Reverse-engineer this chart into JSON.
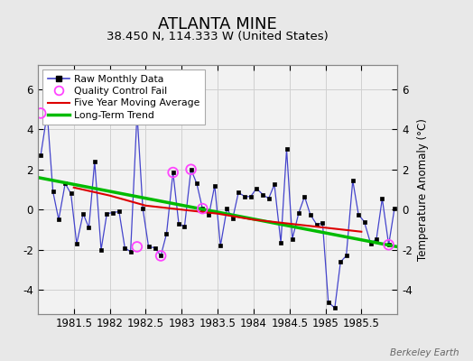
{
  "title": "ATLANTA MINE",
  "subtitle": "38.450 N, 114.333 W (United States)",
  "watermark": "Berkeley Earth",
  "ylabel": "Temperature Anomaly (°C)",
  "ylim": [
    -5.2,
    7.2
  ],
  "xlim": [
    1981.0,
    1986.0
  ],
  "xticks": [
    1981.5,
    1982.0,
    1982.5,
    1983.0,
    1983.5,
    1984.0,
    1984.5,
    1985.0,
    1985.5
  ],
  "xtick_labels": [
    "1981.5",
    "1982",
    "1982.5",
    "1983",
    "1983.5",
    "1984",
    "1984.5",
    "1985",
    "1985.5"
  ],
  "yticks": [
    -4,
    -2,
    0,
    2,
    4,
    6
  ],
  "ytick_labels": [
    "-4",
    "-2",
    "0",
    "2",
    "4",
    "6"
  ],
  "background_color": "#e8e8e8",
  "plot_bg_color": "#f2f2f2",
  "raw_x": [
    1981.04,
    1981.13,
    1981.21,
    1981.29,
    1981.38,
    1981.46,
    1981.54,
    1981.63,
    1981.71,
    1981.79,
    1981.88,
    1981.96,
    1982.04,
    1982.13,
    1982.21,
    1982.29,
    1982.38,
    1982.46,
    1982.54,
    1982.63,
    1982.71,
    1982.79,
    1982.88,
    1982.96,
    1983.04,
    1983.13,
    1983.21,
    1983.29,
    1983.38,
    1983.46,
    1983.54,
    1983.63,
    1983.71,
    1983.79,
    1983.88,
    1983.96,
    1984.04,
    1984.13,
    1984.21,
    1984.29,
    1984.38,
    1984.46,
    1984.54,
    1984.63,
    1984.71,
    1984.79,
    1984.88,
    1984.96,
    1985.04,
    1985.13,
    1985.21,
    1985.29,
    1985.38,
    1985.46,
    1985.54,
    1985.63,
    1985.71,
    1985.79,
    1985.88,
    1985.96
  ],
  "raw_y": [
    2.7,
    4.8,
    0.9,
    -0.5,
    1.3,
    0.8,
    -1.7,
    -0.2,
    -0.9,
    2.4,
    -2.0,
    -0.2,
    -0.15,
    -0.1,
    -1.9,
    -2.1,
    4.8,
    0.05,
    -1.85,
    -1.9,
    -2.3,
    -1.2,
    1.85,
    -0.7,
    -0.85,
    2.0,
    1.3,
    0.05,
    -0.25,
    1.2,
    -1.8,
    0.05,
    -0.45,
    0.85,
    0.65,
    0.65,
    1.05,
    0.75,
    0.55,
    1.25,
    -1.65,
    3.0,
    -1.45,
    -0.15,
    0.65,
    -0.25,
    -0.75,
    -0.65,
    -4.6,
    -4.9,
    -2.6,
    -2.3,
    1.45,
    -0.25,
    -0.6,
    -1.7,
    -1.45,
    0.55,
    -1.75,
    0.05
  ],
  "qc_fail_x": [
    1981.04,
    1982.38,
    1982.71,
    1982.88,
    1983.13,
    1983.29,
    1985.88
  ],
  "qc_fail_y": [
    4.8,
    -1.85,
    -2.3,
    1.85,
    2.0,
    0.05,
    -1.75
  ],
  "trend_x": [
    1981.0,
    1986.0
  ],
  "trend_y": [
    1.6,
    -1.85
  ],
  "ma_x": [
    1981.5,
    1982.0,
    1982.5,
    1983.0,
    1983.5,
    1984.0,
    1984.5,
    1985.0,
    1985.5
  ],
  "ma_y": [
    1.1,
    0.7,
    0.2,
    0.0,
    -0.2,
    -0.5,
    -0.7,
    -0.9,
    -1.1
  ],
  "line_color": "#4444cc",
  "dot_color": "#000000",
  "qc_color": "#ff44ff",
  "trend_color": "#00bb00",
  "ma_color": "#dd0000",
  "grid_color": "#d0d0d0",
  "title_fontsize": 13,
  "subtitle_fontsize": 9.5,
  "label_fontsize": 8.5,
  "tick_fontsize": 8.5
}
